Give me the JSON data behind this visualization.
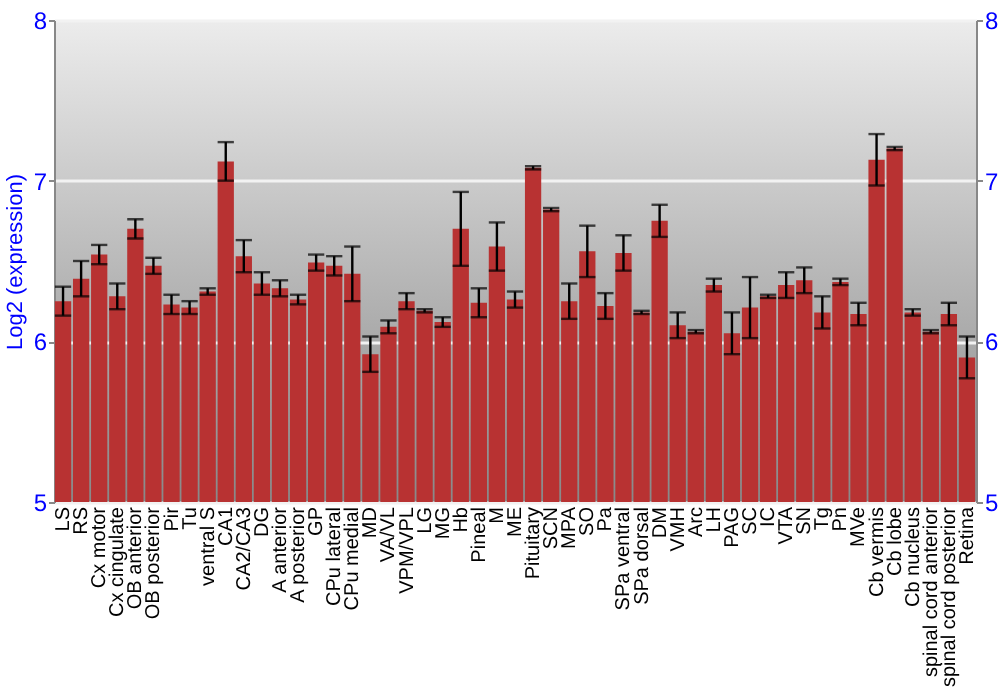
{
  "chart_data": {
    "type": "bar",
    "ylabel": "Log2 (expression)",
    "categories": [
      "LS",
      "RS",
      "Cx motor",
      "Cx cingulate",
      "OB anterior",
      "OB posterior",
      "Pir",
      "Tu",
      "ventral S",
      "CA1",
      "CA2/CA3",
      "DG",
      "A anterior",
      "A posterior",
      "GP",
      "CPu lateral",
      "CPu medial",
      "MD",
      "VA/VL",
      "VPM/VPL",
      "LG",
      "MG",
      "Hb",
      "Pineal",
      "M",
      "ME",
      "Pituitary",
      "SCN",
      "MPA",
      "SO",
      "Pa",
      "SPa ventral",
      "SPa dorsal",
      "DM",
      "VMH",
      "Arc",
      "LH",
      "PAG",
      "SC",
      "IC",
      "VTA",
      "SN",
      "Tg",
      "Pn",
      "MVe",
      "Cb vermis",
      "Cb lobe",
      "Cb nucleus",
      "spinal cord anterior",
      "spinal cord posterior",
      "Retina"
    ],
    "series": [
      {
        "color": "#b83232",
        "values": [
          6.25,
          6.39,
          6.54,
          6.28,
          6.7,
          6.47,
          6.23,
          6.21,
          6.31,
          7.12,
          6.53,
          6.36,
          6.33,
          6.26,
          6.49,
          6.47,
          6.42,
          5.92,
          6.09,
          6.25,
          6.19,
          6.12,
          6.7,
          6.24,
          6.59,
          6.26,
          7.08,
          6.82,
          6.25,
          6.56,
          6.22,
          6.55,
          6.18,
          6.75,
          6.1,
          6.06,
          6.35,
          6.05,
          6.21,
          6.28,
          6.35,
          6.38,
          6.18,
          6.37,
          6.17,
          7.13,
          7.2,
          6.18,
          6.06,
          6.17,
          5.9
        ],
        "errors": [
          0.09,
          0.11,
          0.06,
          0.08,
          0.06,
          0.05,
          0.06,
          0.04,
          0.02,
          0.12,
          0.1,
          0.07,
          0.05,
          0.03,
          0.05,
          0.06,
          0.17,
          0.11,
          0.04,
          0.05,
          0.01,
          0.03,
          0.23,
          0.09,
          0.15,
          0.05,
          0.01,
          0.01,
          0.11,
          0.16,
          0.08,
          0.11,
          0.01,
          0.1,
          0.08,
          0.01,
          0.04,
          0.13,
          0.19,
          0.01,
          0.08,
          0.08,
          0.1,
          0.02,
          0.07,
          0.16,
          0.01,
          0.02,
          0.01,
          0.07,
          0.13
        ]
      }
    ],
    "ylim": [
      5,
      8
    ],
    "yticks": [
      5,
      6,
      7,
      8
    ],
    "y2lim": [
      5,
      8
    ],
    "y2ticks": [
      5,
      6,
      7,
      8
    ],
    "grid": "y"
  }
}
